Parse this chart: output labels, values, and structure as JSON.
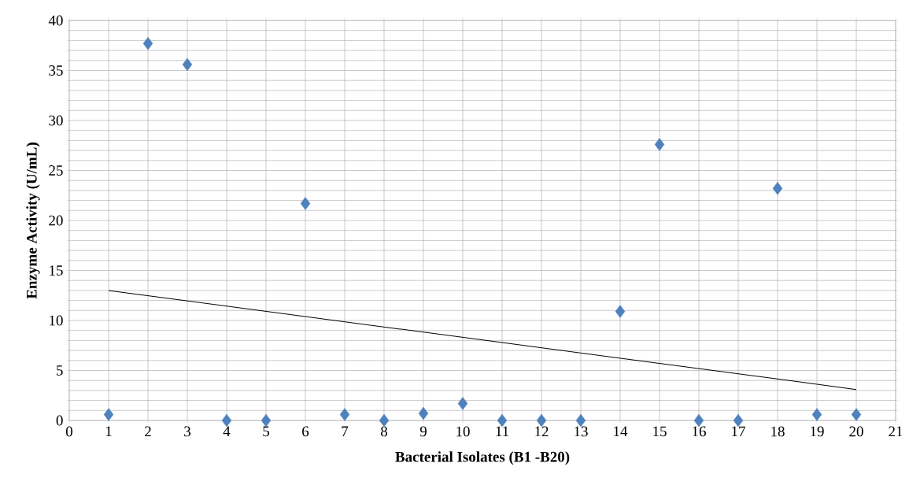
{
  "chart_data": {
    "type": "scatter",
    "xlabel": "Bacterial Isolates (B1 -B20)",
    "ylabel": "Enzyme Activity (U/mL)",
    "xlim": [
      0,
      21
    ],
    "xticks": [
      0,
      1,
      2,
      3,
      4,
      5,
      6,
      7,
      8,
      9,
      10,
      11,
      12,
      13,
      14,
      15,
      16,
      17,
      18,
      19,
      20,
      21
    ],
    "ylim": [
      0,
      40
    ],
    "yticks": [
      0,
      {
        "value": 1,
        "label": null
      },
      {
        "value": 2,
        "label": null
      },
      {
        "value": 3,
        "label": null
      },
      {
        "value": 4,
        "label": null
      },
      5,
      {
        "value": 6,
        "label": null
      },
      {
        "value": 7,
        "label": null
      },
      {
        "value": 8,
        "label": null
      },
      {
        "value": 9,
        "label": null
      },
      10,
      {
        "value": 11,
        "label": null
      },
      {
        "value": 12,
        "label": null
      },
      {
        "value": 13,
        "label": null
      },
      {
        "value": 14,
        "label": null
      },
      15,
      {
        "value": 16,
        "label": null
      },
      {
        "value": 17,
        "label": null
      },
      {
        "value": 18,
        "label": null
      },
      {
        "value": 19,
        "label": null
      },
      20,
      {
        "value": 21,
        "label": null
      },
      {
        "value": 22,
        "label": null
      },
      {
        "value": 23,
        "label": null
      },
      {
        "value": 24,
        "label": null
      },
      25,
      {
        "value": 26,
        "label": null
      },
      {
        "value": 27,
        "label": null
      },
      {
        "value": 28,
        "label": null
      },
      {
        "value": 29,
        "label": null
      },
      30,
      {
        "value": 31,
        "label": null
      },
      {
        "value": 32,
        "label": null
      },
      {
        "value": 33,
        "label": null
      },
      {
        "value": 34,
        "label": null
      },
      35,
      {
        "value": 36,
        "label": null
      },
      {
        "value": 37,
        "label": null
      },
      {
        "value": 38,
        "label": null
      },
      {
        "value": 39,
        "label": null
      },
      40
    ],
    "grid": true,
    "series": [
      {
        "color": "#4f81bd",
        "marker": "diamond",
        "x": [
          1,
          2,
          3,
          4,
          5,
          6,
          7,
          8,
          9,
          10,
          11,
          12,
          13,
          14,
          15,
          16,
          17,
          18,
          19,
          20
        ],
        "values": [
          0.6,
          37.7,
          35.6,
          0,
          0,
          21.7,
          0.6,
          0,
          0.7,
          1.7,
          0,
          0,
          0,
          10.9,
          27.6,
          0,
          0,
          23.2,
          0.6,
          0.6
        ]
      },
      {
        "type": "line",
        "color": "#000000",
        "marker": "none",
        "line_style": "solid",
        "x": [
          1,
          20
        ],
        "values": [
          13.0,
          3.1
        ]
      }
    ]
  }
}
